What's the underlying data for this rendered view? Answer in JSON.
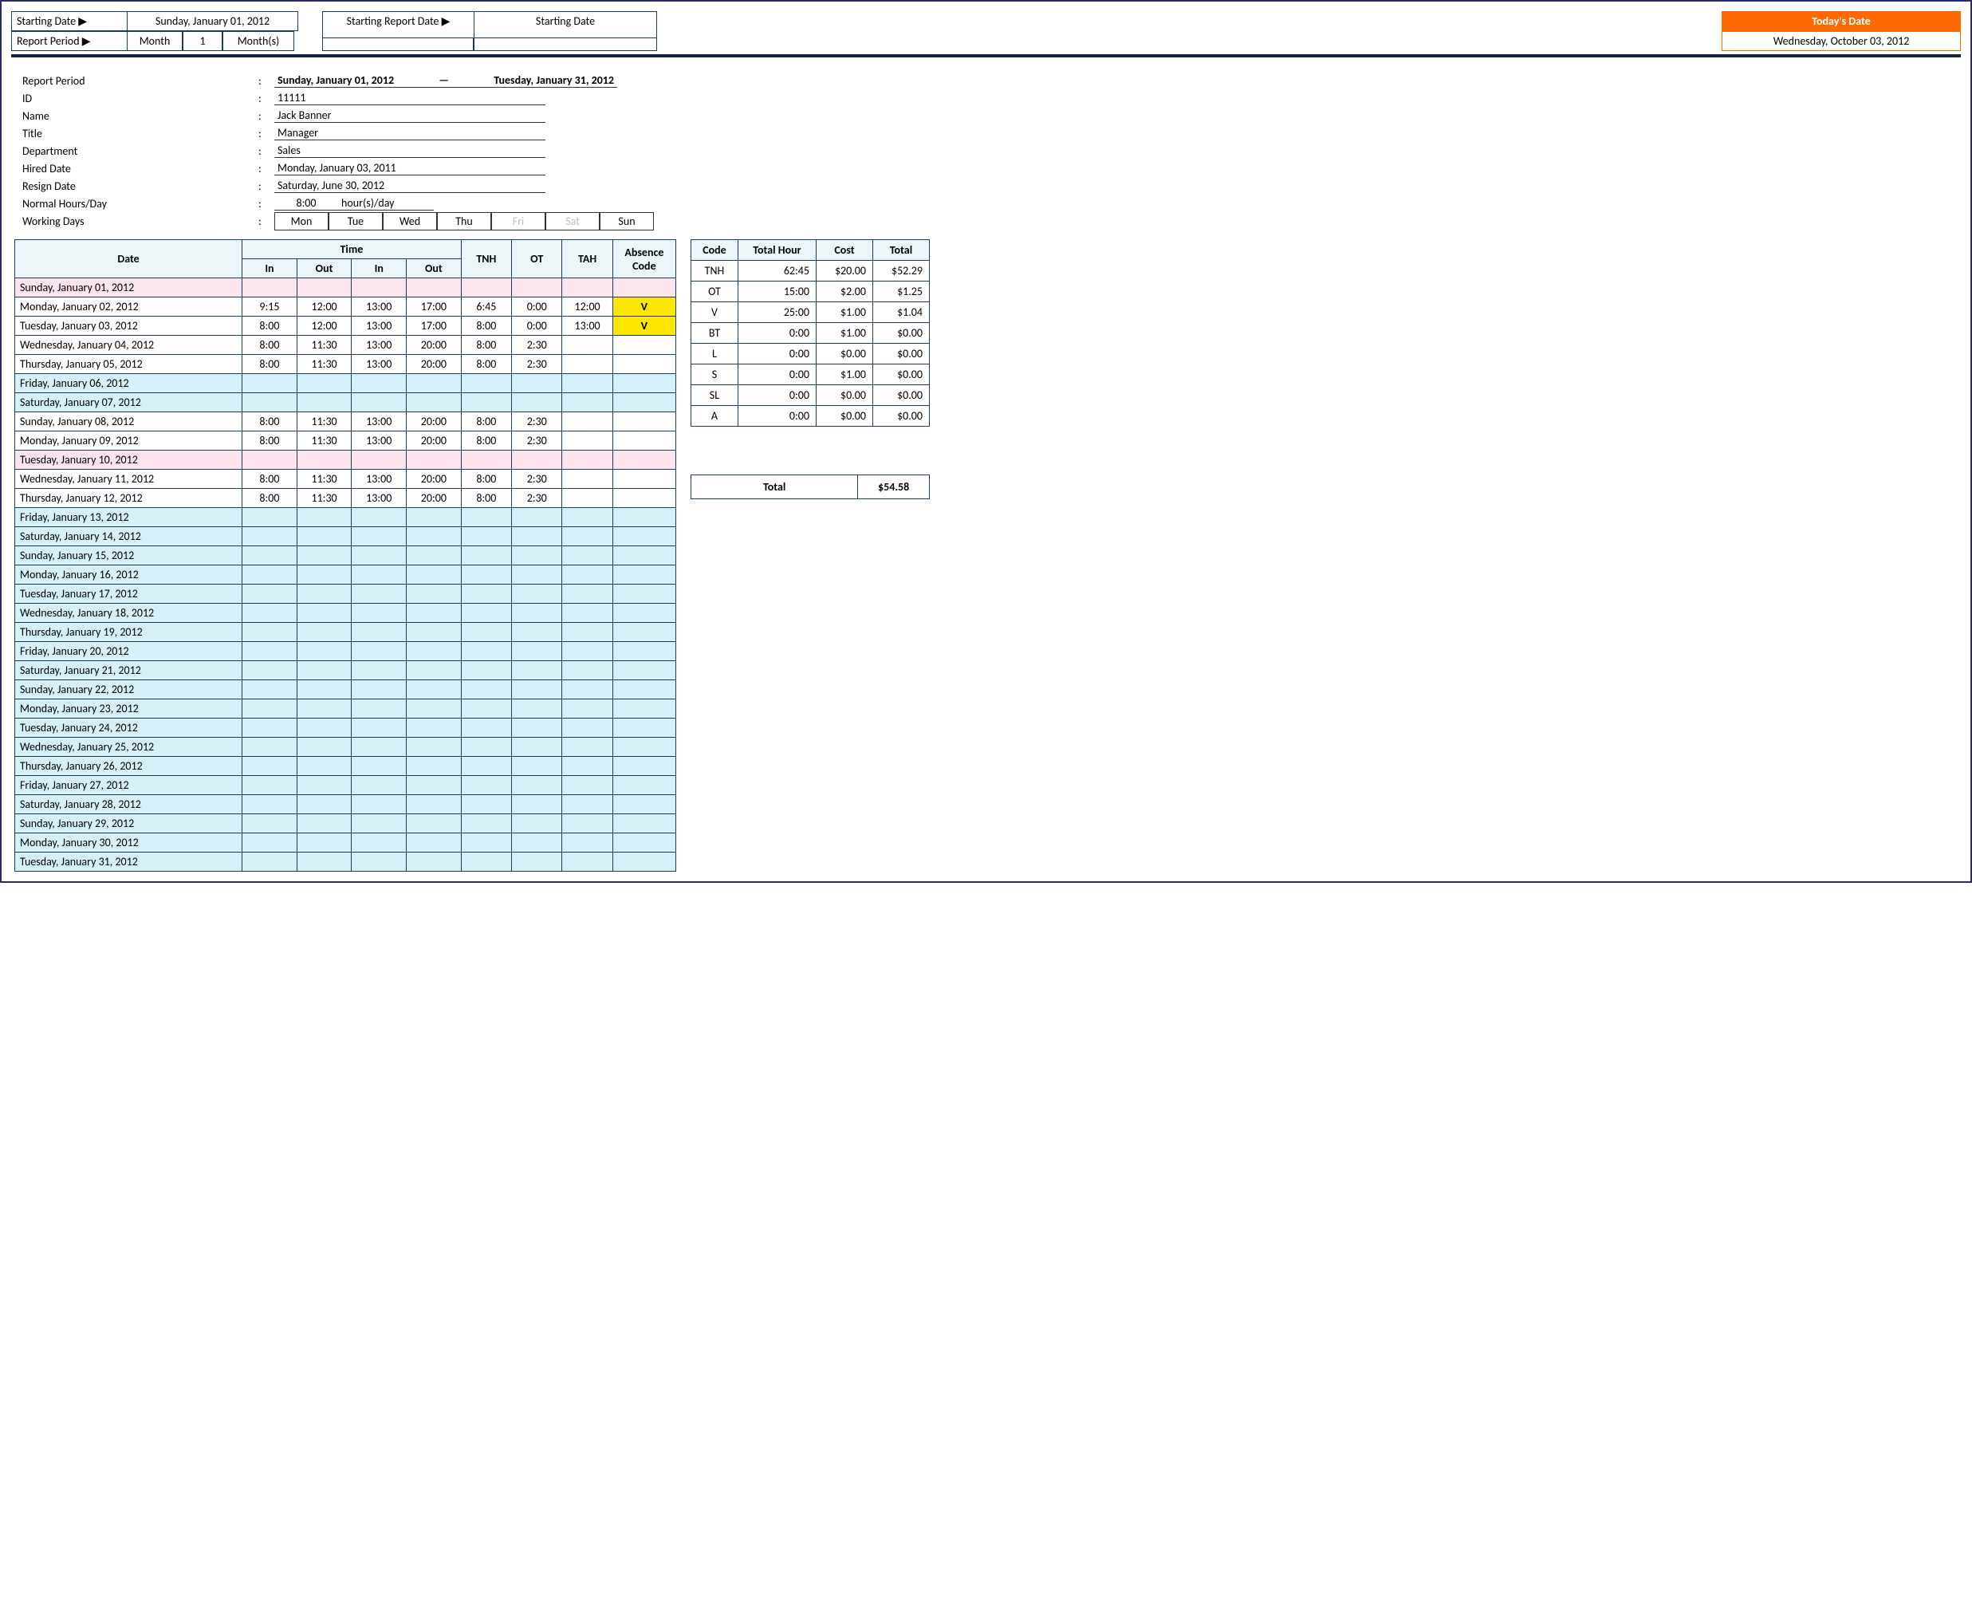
{
  "top": {
    "starting_date_lbl": "Starting Date ▶",
    "starting_date_val": "Sunday, January 01, 2012",
    "report_period_lbl": "Report Period ▶",
    "report_period_unit": "Month",
    "report_period_qty": "1",
    "report_period_suffix": "Month(s)",
    "starting_report_date_lbl": "Starting Report Date ▶",
    "starting_report_date_val": "Starting Date",
    "today_lbl": "Today's Date",
    "today_val": "Wednesday, October 03, 2012"
  },
  "info": {
    "report_period_lbl": "Report Period",
    "report_period_from": "Sunday, January 01, 2012",
    "report_period_to": "Tuesday, January 31, 2012",
    "id_lbl": "ID",
    "id_val": "11111",
    "name_lbl": "Name",
    "name_val": "Jack Banner",
    "title_lbl": "Title",
    "title_val": "Manager",
    "dept_lbl": "Department",
    "dept_val": "Sales",
    "hired_lbl": "Hired Date",
    "hired_val": "Monday, January 03, 2011",
    "resign_lbl": "Resign Date",
    "resign_val": "Saturday, June 30, 2012",
    "hours_lbl": "Normal Hours/Day",
    "hours_val": "8:00",
    "hours_unit": "hour(s)/day",
    "wd_lbl": "Working Days",
    "wd": [
      "Mon",
      "Tue",
      "Wed",
      "Thu",
      "Fri",
      "Sat",
      "Sun"
    ],
    "wd_on": [
      true,
      true,
      true,
      true,
      false,
      false,
      true
    ]
  },
  "ts": {
    "headers": {
      "date": "Date",
      "time": "Time",
      "in": "In",
      "out": "Out",
      "tnh": "TNH",
      "ot": "OT",
      "tah": "TAH",
      "abs": "Absence Code"
    },
    "rows": [
      {
        "date": "Sunday, January 01, 2012",
        "cls": "pink"
      },
      {
        "date": "Monday, January 02, 2012",
        "in1": "9:15",
        "out1": "12:00",
        "in2": "13:00",
        "out2": "17:00",
        "tnh": "6:45",
        "ot": "0:00",
        "tah": "12:00",
        "abs": "V",
        "absY": true
      },
      {
        "date": "Tuesday, January 03, 2012",
        "in1": "8:00",
        "out1": "12:00",
        "in2": "13:00",
        "out2": "17:00",
        "tnh": "8:00",
        "ot": "0:00",
        "tah": "13:00",
        "abs": "V",
        "absY": true
      },
      {
        "date": "Wednesday, January 04, 2012",
        "in1": "8:00",
        "out1": "11:30",
        "in2": "13:00",
        "out2": "20:00",
        "tnh": "8:00",
        "ot": "2:30"
      },
      {
        "date": "Thursday, January 05, 2012",
        "in1": "8:00",
        "out1": "11:30",
        "in2": "13:00",
        "out2": "20:00",
        "tnh": "8:00",
        "ot": "2:30"
      },
      {
        "date": "Friday, January 06, 2012",
        "cls": "blue"
      },
      {
        "date": "Saturday, January 07, 2012",
        "cls": "blue"
      },
      {
        "date": "Sunday, January 08, 2012",
        "in1": "8:00",
        "out1": "11:30",
        "in2": "13:00",
        "out2": "20:00",
        "tnh": "8:00",
        "ot": "2:30"
      },
      {
        "date": "Monday, January 09, 2012",
        "in1": "8:00",
        "out1": "11:30",
        "in2": "13:00",
        "out2": "20:00",
        "tnh": "8:00",
        "ot": "2:30"
      },
      {
        "date": "Tuesday, January 10, 2012",
        "cls": "pink"
      },
      {
        "date": "Wednesday, January 11, 2012",
        "in1": "8:00",
        "out1": "11:30",
        "in2": "13:00",
        "out2": "20:00",
        "tnh": "8:00",
        "ot": "2:30"
      },
      {
        "date": "Thursday, January 12, 2012",
        "in1": "8:00",
        "out1": "11:30",
        "in2": "13:00",
        "out2": "20:00",
        "tnh": "8:00",
        "ot": "2:30"
      },
      {
        "date": "Friday, January 13, 2012",
        "cls": "blue"
      },
      {
        "date": "Saturday, January 14, 2012",
        "cls": "blue"
      },
      {
        "date": "Sunday, January 15, 2012",
        "cls": "blue"
      },
      {
        "date": "Monday, January 16, 2012",
        "cls": "blue"
      },
      {
        "date": "Tuesday, January 17, 2012",
        "cls": "blue"
      },
      {
        "date": "Wednesday, January 18, 2012",
        "cls": "blue"
      },
      {
        "date": "Thursday, January 19, 2012",
        "cls": "blue"
      },
      {
        "date": "Friday, January 20, 2012",
        "cls": "blue"
      },
      {
        "date": "Saturday, January 21, 2012",
        "cls": "blue"
      },
      {
        "date": "Sunday, January 22, 2012",
        "cls": "blue"
      },
      {
        "date": "Monday, January 23, 2012",
        "cls": "blue"
      },
      {
        "date": "Tuesday, January 24, 2012",
        "cls": "blue"
      },
      {
        "date": "Wednesday, January 25, 2012",
        "cls": "blue"
      },
      {
        "date": "Thursday, January 26, 2012",
        "cls": "blue"
      },
      {
        "date": "Friday, January 27, 2012",
        "cls": "blue"
      },
      {
        "date": "Saturday, January 28, 2012",
        "cls": "blue"
      },
      {
        "date": "Sunday, January 29, 2012",
        "cls": "blue"
      },
      {
        "date": "Monday, January 30, 2012",
        "cls": "blue"
      },
      {
        "date": "Tuesday, January 31, 2012",
        "cls": "blue"
      }
    ]
  },
  "summary": {
    "headers": {
      "code": "Code",
      "hour": "Total Hour",
      "cost": "Cost",
      "total": "Total"
    },
    "rows": [
      {
        "code": "TNH",
        "hour": "62:45",
        "cost": "$20.00",
        "total": "$52.29"
      },
      {
        "code": "OT",
        "hour": "15:00",
        "cost": "$2.00",
        "total": "$1.25"
      },
      {
        "code": "V",
        "hour": "25:00",
        "cost": "$1.00",
        "total": "$1.04"
      },
      {
        "code": "BT",
        "hour": "0:00",
        "cost": "$1.00",
        "total": "$0.00"
      },
      {
        "code": "L",
        "hour": "0:00",
        "cost": "$0.00",
        "total": "$0.00"
      },
      {
        "code": "S",
        "hour": "0:00",
        "cost": "$1.00",
        "total": "$0.00"
      },
      {
        "code": "SL",
        "hour": "0:00",
        "cost": "$0.00",
        "total": "$0.00"
      },
      {
        "code": "A",
        "hour": "0:00",
        "cost": "$0.00",
        "total": "$0.00"
      }
    ],
    "grand_lbl": "Total",
    "grand_val": "$54.58"
  },
  "colors": {
    "header_bg": "#ecf6f9",
    "border": "#1a3a5a",
    "pink": "#fce4ec",
    "blue": "#d6f0f7",
    "yellow": "#ffe600",
    "orange": "#ff6a00"
  }
}
